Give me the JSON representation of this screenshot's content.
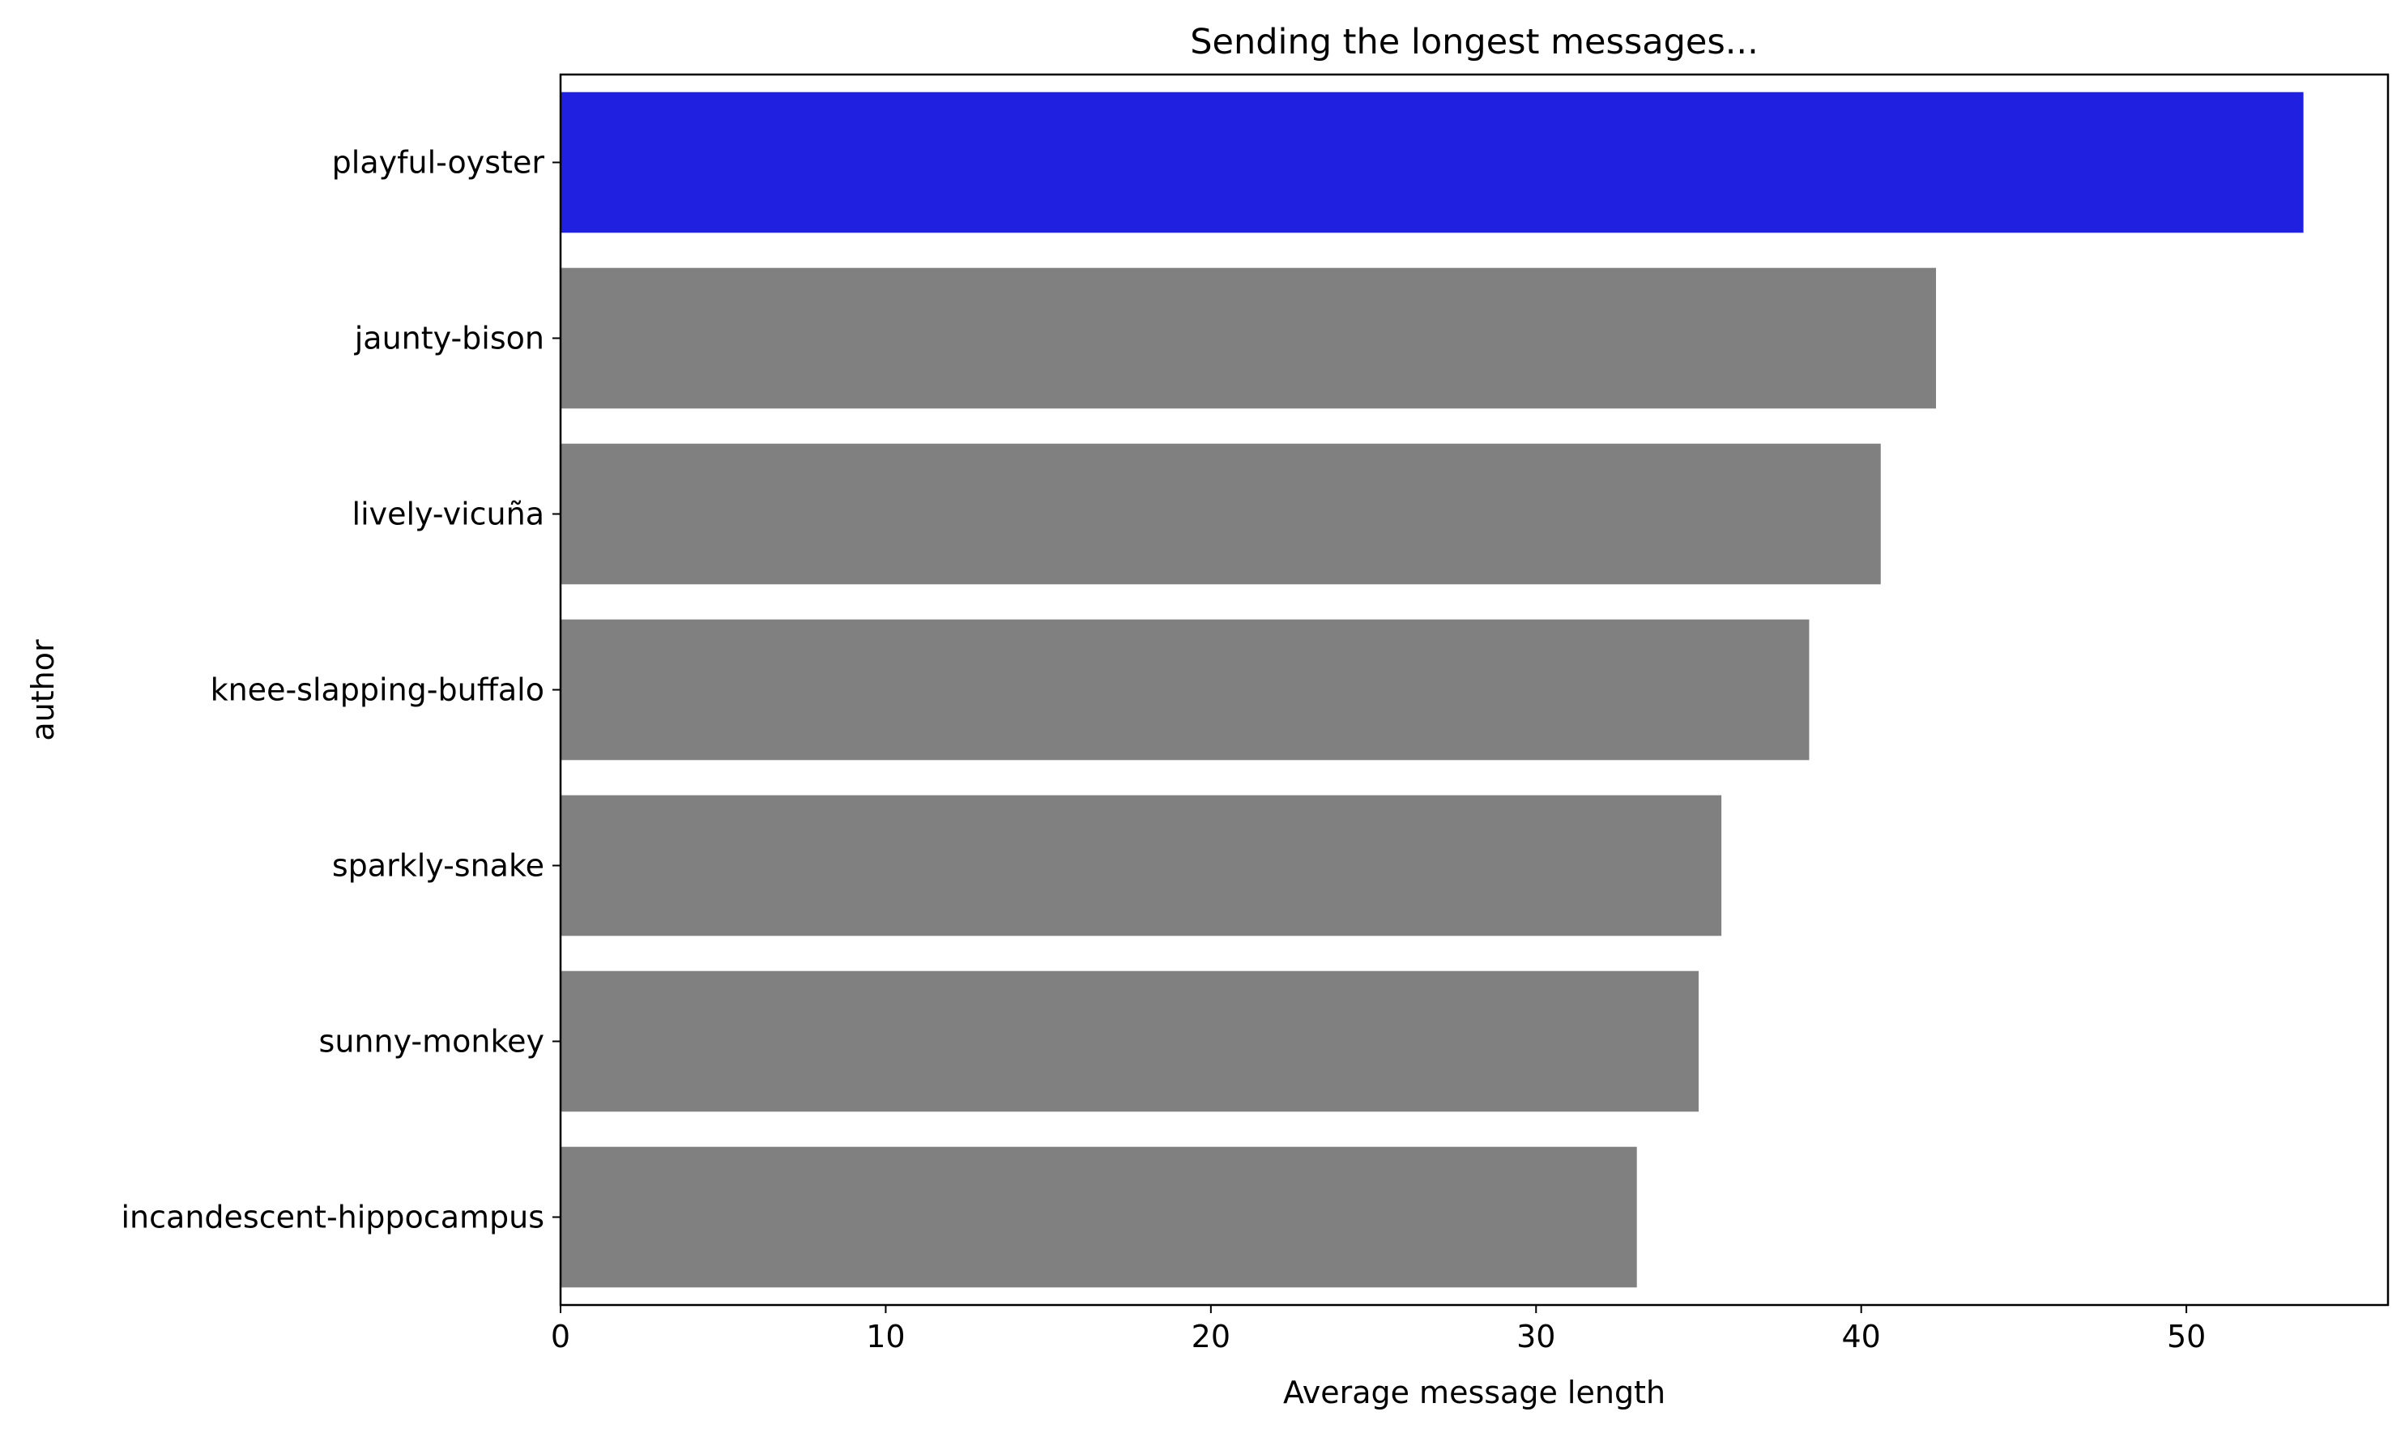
{
  "chart_data": {
    "type": "bar",
    "orientation": "horizontal",
    "title": "Sending the longest messages...",
    "xlabel": "Average message length",
    "ylabel": "author",
    "categories": [
      "playful-oyster",
      "jaunty-bison",
      "lively-vicuña",
      "knee-slapping-buffalo",
      "sparkly-snake",
      "sunny-monkey",
      "incandescent-hippocampus"
    ],
    "values": [
      53.6,
      42.3,
      40.6,
      38.4,
      35.7,
      35.0,
      33.1
    ],
    "bar_colors": [
      "#2020e0",
      "#808080",
      "#808080",
      "#808080",
      "#808080",
      "#808080",
      "#808080"
    ],
    "xlim": [
      0,
      56.2
    ],
    "xticks": [
      0,
      10,
      20,
      30,
      40,
      50
    ],
    "grid": false,
    "legend": "none"
  }
}
